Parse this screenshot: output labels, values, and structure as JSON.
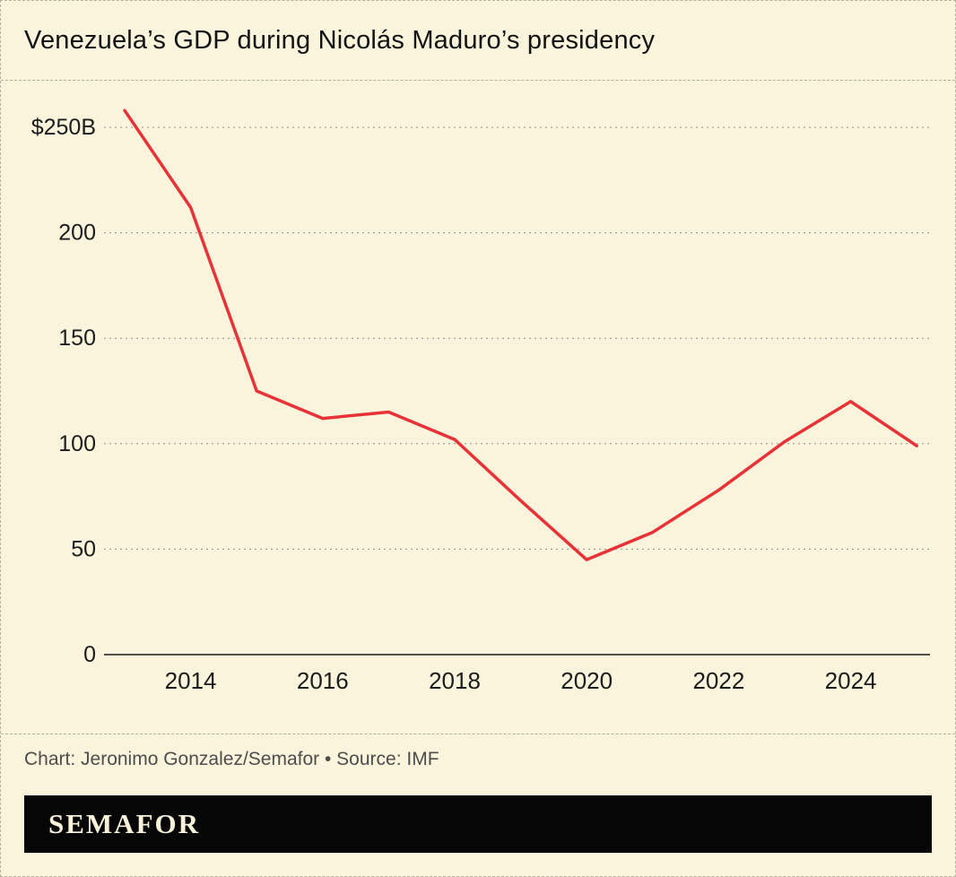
{
  "header": {
    "title": "Venezuela’s GDP during Nicolás Maduro’s presidency"
  },
  "footer": {
    "credit": "Chart: Jeronimo Gonzalez/Semafor • Source: IMF",
    "logo": "SEMAFOR"
  },
  "colors": {
    "background": "#FAF4DC",
    "line": "#E73338",
    "grid": "#8e8e8e",
    "axis": "#161616",
    "logo_bar": "#060606",
    "logo_text": "#F7F1D9"
  },
  "chart_data": {
    "type": "line",
    "title": "Venezuela’s GDP during Nicolás Maduro’s presidency",
    "x": [
      2013,
      2014,
      2015,
      2016,
      2017,
      2018,
      2019,
      2020,
      2021,
      2022,
      2023,
      2024,
      2025
    ],
    "values": [
      258,
      212,
      125,
      112,
      115,
      102,
      73,
      45,
      58,
      78,
      101,
      120,
      99
    ],
    "unit": "billion USD",
    "line_color": "#E73338",
    "xticks": [
      2014,
      2016,
      2018,
      2020,
      2022,
      2024
    ],
    "yticks": [
      0,
      50,
      100,
      150,
      200,
      250
    ],
    "ytick_labels": [
      "0",
      "50",
      "100",
      "150",
      "200",
      "$250B"
    ],
    "ylim": [
      0,
      265
    ],
    "grid": "dashed-horizontal",
    "legend": "none",
    "source": "IMF"
  }
}
